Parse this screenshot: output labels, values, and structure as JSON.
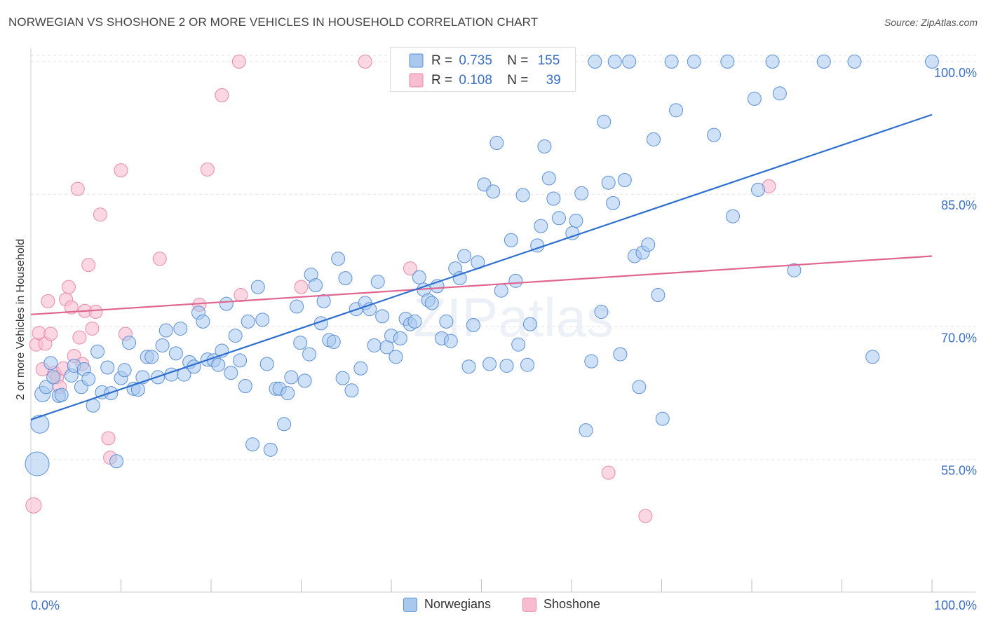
{
  "header": {
    "title": "NORWEGIAN VS SHOSHONE 2 OR MORE VEHICLES IN HOUSEHOLD CORRELATION CHART",
    "source": "Source: ZipAtlas.com"
  },
  "colors": {
    "norwegians_fill": "#a8c8ee",
    "norwegians_stroke": "#5b8fd6",
    "norwegians_line": "#2e6fd0",
    "shoshone_fill": "#f7bcd0",
    "shoshone_stroke": "#e889a8",
    "shoshone_line": "#e06590",
    "value_text": "#3a6fc4",
    "grid": "#e3e3e3"
  },
  "legend": {
    "rows": [
      {
        "r_label": "R =",
        "r_value": "0.735",
        "n_label": "N =",
        "n_value": "155"
      },
      {
        "r_label": "R =",
        "r_value": "0.108",
        "n_label": "N =",
        "n_value": "39"
      }
    ]
  },
  "chart_data": {
    "type": "scatter",
    "title": "NORWEGIAN VS SHOSHONE 2 OR MORE VEHICLES IN HOUSEHOLD CORRELATION CHART",
    "xlabel": "",
    "ylabel": "2 or more Vehicles in Household",
    "x_tick_labels": [
      "0.0%",
      "100.0%"
    ],
    "y_tick_labels": [
      "55.0%",
      "70.0%",
      "85.0%",
      "100.0%"
    ],
    "y_ticks": [
      55,
      70,
      85,
      100
    ],
    "xlim": [
      0,
      100
    ],
    "ylim": [
      40,
      101.5
    ],
    "grid": true,
    "legend_position": "top-center",
    "watermark": "ZIPatlas",
    "series": [
      {
        "name": "Norwegians",
        "r": 0.735,
        "n": 155,
        "trend": {
          "x": [
            0,
            100
          ],
          "y": [
            59.5,
            94.0
          ]
        },
        "points": [
          [
            1.0,
            59.0
          ],
          [
            0.7,
            54.5
          ],
          [
            1.3,
            62.4
          ],
          [
            1.7,
            63.2
          ],
          [
            2.2,
            65.9
          ],
          [
            2.5,
            64.3
          ],
          [
            3.1,
            62.2
          ],
          [
            3.4,
            62.3
          ],
          [
            4.5,
            64.5
          ],
          [
            4.8,
            65.6
          ],
          [
            5.6,
            63.2
          ],
          [
            5.9,
            65.2
          ],
          [
            6.4,
            64.1
          ],
          [
            6.9,
            61.1
          ],
          [
            7.4,
            67.2
          ],
          [
            7.9,
            62.6
          ],
          [
            8.5,
            65.4
          ],
          [
            8.9,
            62.5
          ],
          [
            9.5,
            54.8
          ],
          [
            10.0,
            64.2
          ],
          [
            10.4,
            65.1
          ],
          [
            10.9,
            68.2
          ],
          [
            11.4,
            63.0
          ],
          [
            11.9,
            62.9
          ],
          [
            12.4,
            64.3
          ],
          [
            12.9,
            66.6
          ],
          [
            13.4,
            66.6
          ],
          [
            14.1,
            64.3
          ],
          [
            14.6,
            67.9
          ],
          [
            15.0,
            69.6
          ],
          [
            15.6,
            64.6
          ],
          [
            16.1,
            67.0
          ],
          [
            16.6,
            69.8
          ],
          [
            17.0,
            64.6
          ],
          [
            17.6,
            66.0
          ],
          [
            18.1,
            65.5
          ],
          [
            18.6,
            71.6
          ],
          [
            19.1,
            70.6
          ],
          [
            19.6,
            66.3
          ],
          [
            20.3,
            66.2
          ],
          [
            20.8,
            65.7
          ],
          [
            21.2,
            67.3
          ],
          [
            21.7,
            72.6
          ],
          [
            22.2,
            64.8
          ],
          [
            22.7,
            69.0
          ],
          [
            23.2,
            66.2
          ],
          [
            23.8,
            63.3
          ],
          [
            24.1,
            70.6
          ],
          [
            24.6,
            56.7
          ],
          [
            25.2,
            74.5
          ],
          [
            25.7,
            70.8
          ],
          [
            26.2,
            65.8
          ],
          [
            26.6,
            56.1
          ],
          [
            27.2,
            63.0
          ],
          [
            27.6,
            63.0
          ],
          [
            28.1,
            59.0
          ],
          [
            28.5,
            62.5
          ],
          [
            28.9,
            64.3
          ],
          [
            29.5,
            72.3
          ],
          [
            29.9,
            68.2
          ],
          [
            30.4,
            63.9
          ],
          [
            30.9,
            66.9
          ],
          [
            31.1,
            75.9
          ],
          [
            31.6,
            74.7
          ],
          [
            32.2,
            70.4
          ],
          [
            32.5,
            72.9
          ],
          [
            33.1,
            68.5
          ],
          [
            33.6,
            68.3
          ],
          [
            34.1,
            77.7
          ],
          [
            34.6,
            64.2
          ],
          [
            34.9,
            75.5
          ],
          [
            35.6,
            62.8
          ],
          [
            36.1,
            72.0
          ],
          [
            36.6,
            65.3
          ],
          [
            37.1,
            72.7
          ],
          [
            37.6,
            72.0
          ],
          [
            38.1,
            67.9
          ],
          [
            38.5,
            75.1
          ],
          [
            39.0,
            71.2
          ],
          [
            39.5,
            67.7
          ],
          [
            40.0,
            69.0
          ],
          [
            40.5,
            66.6
          ],
          [
            41.0,
            68.7
          ],
          [
            41.6,
            70.9
          ],
          [
            42.1,
            70.3
          ],
          [
            42.6,
            70.6
          ],
          [
            43.1,
            75.6
          ],
          [
            43.6,
            74.2
          ],
          [
            44.1,
            73.0
          ],
          [
            44.5,
            72.7
          ],
          [
            45.1,
            74.6
          ],
          [
            45.6,
            68.7
          ],
          [
            46.1,
            70.6
          ],
          [
            46.6,
            68.4
          ],
          [
            47.1,
            76.6
          ],
          [
            47.6,
            75.5
          ],
          [
            48.1,
            78.0
          ],
          [
            48.6,
            65.5
          ],
          [
            49.1,
            70.2
          ],
          [
            49.6,
            77.3
          ],
          [
            50.3,
            86.1
          ],
          [
            50.9,
            65.8
          ],
          [
            51.3,
            85.3
          ],
          [
            51.7,
            90.8
          ],
          [
            52.2,
            74.1
          ],
          [
            52.8,
            65.6
          ],
          [
            53.3,
            79.8
          ],
          [
            53.8,
            75.2
          ],
          [
            54.1,
            68.0
          ],
          [
            54.6,
            84.9
          ],
          [
            55.1,
            65.7
          ],
          [
            55.4,
            70.3
          ],
          [
            56.2,
            79.2
          ],
          [
            56.6,
            81.4
          ],
          [
            57.0,
            90.4
          ],
          [
            57.5,
            86.8
          ],
          [
            58.0,
            84.5
          ],
          [
            58.6,
            82.3
          ],
          [
            59.6,
            100.0
          ],
          [
            60.1,
            80.6
          ],
          [
            60.5,
            82.0
          ],
          [
            61.1,
            85.1
          ],
          [
            62.2,
            66.1
          ],
          [
            61.6,
            58.3
          ],
          [
            62.6,
            100.0
          ],
          [
            63.3,
            71.7
          ],
          [
            63.6,
            93.2
          ],
          [
            64.1,
            86.3
          ],
          [
            64.6,
            84.0
          ],
          [
            64.8,
            100.0
          ],
          [
            65.4,
            66.9
          ],
          [
            65.9,
            86.6
          ],
          [
            66.4,
            100.0
          ],
          [
            67.0,
            78.0
          ],
          [
            67.5,
            63.2
          ],
          [
            67.9,
            78.4
          ],
          [
            68.5,
            79.3
          ],
          [
            69.1,
            91.2
          ],
          [
            69.6,
            73.6
          ],
          [
            70.1,
            59.6
          ],
          [
            71.1,
            100.0
          ],
          [
            71.6,
            94.5
          ],
          [
            73.6,
            100.0
          ],
          [
            75.8,
            91.7
          ],
          [
            77.3,
            100.0
          ],
          [
            77.9,
            82.5
          ],
          [
            80.3,
            95.8
          ],
          [
            80.7,
            85.5
          ],
          [
            82.3,
            100.0
          ],
          [
            83.1,
            96.4
          ],
          [
            84.7,
            76.4
          ],
          [
            88.0,
            100.0
          ],
          [
            91.4,
            100.0
          ],
          [
            93.4,
            66.6
          ],
          [
            100.0,
            100.0
          ]
        ]
      },
      {
        "name": "Shoshone",
        "r": 0.108,
        "n": 39,
        "trend": {
          "x": [
            0,
            100
          ],
          "y": [
            71.4,
            78.0
          ]
        },
        "points": [
          [
            0.3,
            49.8
          ],
          [
            0.6,
            68.0
          ],
          [
            0.9,
            69.3
          ],
          [
            1.3,
            65.2
          ],
          [
            1.6,
            68.1
          ],
          [
            1.9,
            72.9
          ],
          [
            2.2,
            69.2
          ],
          [
            2.6,
            64.8
          ],
          [
            2.9,
            64.3
          ],
          [
            3.2,
            63.2
          ],
          [
            3.6,
            65.3
          ],
          [
            3.9,
            73.1
          ],
          [
            4.2,
            74.5
          ],
          [
            4.5,
            72.2
          ],
          [
            4.8,
            66.7
          ],
          [
            5.2,
            85.6
          ],
          [
            5.4,
            68.8
          ],
          [
            5.7,
            65.8
          ],
          [
            6.0,
            71.8
          ],
          [
            6.4,
            77.0
          ],
          [
            6.8,
            69.8
          ],
          [
            7.2,
            71.7
          ],
          [
            7.7,
            82.7
          ],
          [
            8.6,
            57.4
          ],
          [
            8.8,
            55.2
          ],
          [
            10.0,
            87.7
          ],
          [
            10.5,
            69.2
          ],
          [
            14.3,
            77.7
          ],
          [
            18.7,
            72.5
          ],
          [
            19.6,
            87.8
          ],
          [
            21.2,
            96.2
          ],
          [
            23.1,
            100.0
          ],
          [
            23.3,
            73.6
          ],
          [
            30.0,
            74.5
          ],
          [
            37.1,
            100.0
          ],
          [
            42.1,
            76.6
          ],
          [
            64.1,
            53.5
          ],
          [
            68.2,
            48.6
          ],
          [
            81.9,
            85.9
          ]
        ]
      }
    ]
  },
  "bottom_legend": [
    {
      "label": "Norwegians"
    },
    {
      "label": "Shoshone"
    }
  ]
}
